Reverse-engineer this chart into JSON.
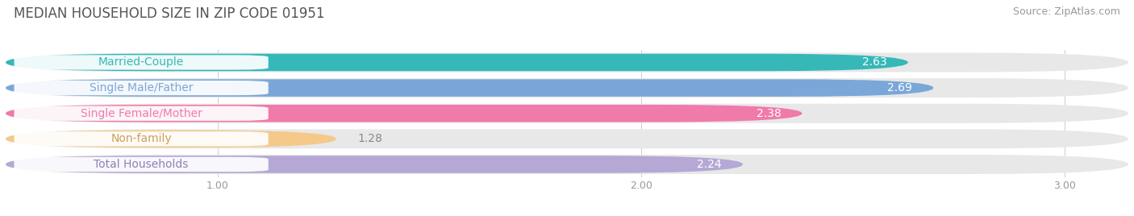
{
  "title": "MEDIAN HOUSEHOLD SIZE IN ZIP CODE 01951",
  "source": "Source: ZipAtlas.com",
  "categories": [
    "Married-Couple",
    "Single Male/Father",
    "Single Female/Mother",
    "Non-family",
    "Total Households"
  ],
  "values": [
    2.63,
    2.69,
    2.38,
    1.28,
    2.24
  ],
  "bar_colors": [
    "#36b8b8",
    "#7ba7d8",
    "#f07aaa",
    "#f5c98a",
    "#b5a8d5"
  ],
  "label_text_colors": [
    "#36b8b8",
    "#7ba7d8",
    "#f07aaa",
    "#c9a060",
    "#9080b8"
  ],
  "value_label_colors": [
    "#ffffff",
    "#ffffff",
    "#ffffff",
    "#888888",
    "#ffffff"
  ],
  "xlim_data": [
    0.5,
    3.15
  ],
  "xstart": 0.5,
  "xticks": [
    1.0,
    2.0,
    3.0
  ],
  "background_color": "#ffffff",
  "bar_background_color": "#e8e8e8",
  "title_fontsize": 12,
  "source_fontsize": 9,
  "label_fontsize": 10,
  "category_fontsize": 10,
  "tick_fontsize": 9,
  "value_threshold_inside": 1.5
}
